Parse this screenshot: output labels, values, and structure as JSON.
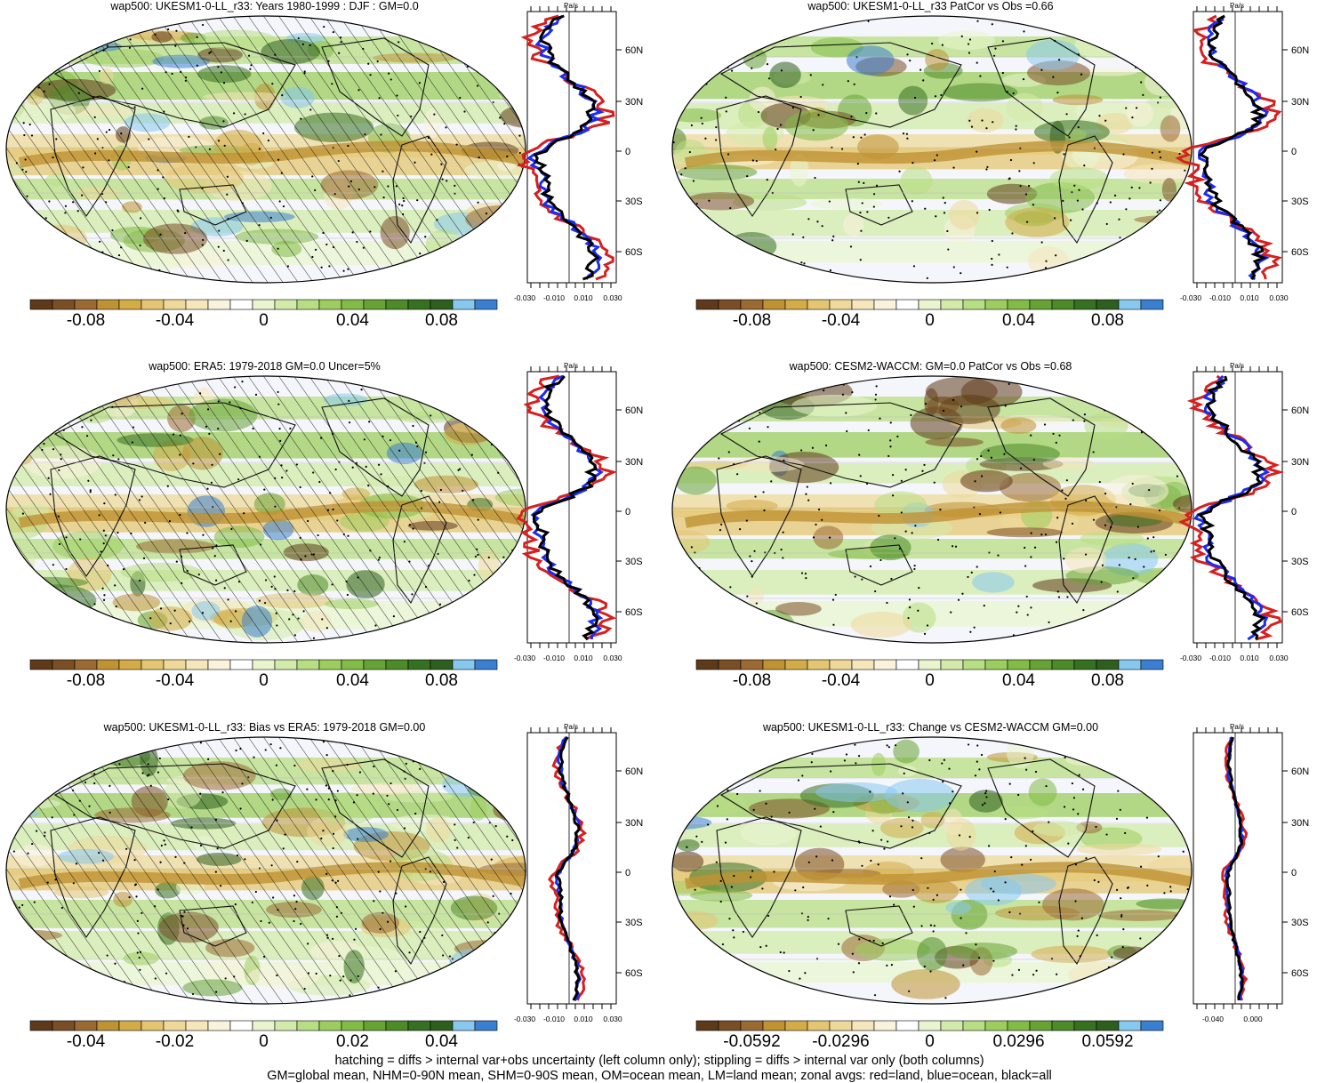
{
  "colors": {
    "scale": [
      "#5e3a1a",
      "#7b4f26",
      "#9b6a33",
      "#bf9233",
      "#d4ac47",
      "#e4c572",
      "#efd99a",
      "#f5e6bc",
      "#f9f2dc",
      "#ffffff",
      "#eaf5d0",
      "#d3ebaa",
      "#b8de83",
      "#9ccd5f",
      "#82bb46",
      "#66a334",
      "#4d8a28",
      "#367021",
      "#2f5f1f",
      "#86c8ee",
      "#3a7fd0"
    ],
    "land_line": "#d62020",
    "ocean_line": "#1a2cf0",
    "all_line": "#000000"
  },
  "panels": [
    {
      "title": "wap500: UKESM1-0-LL_r33: Years 1980-1999 : DJF : GM=0.0",
      "cb_labels": [
        "-0.08",
        "-0.04",
        "0",
        "0.04",
        "0.08"
      ],
      "unit": "Pa/s",
      "profile_ticks": [
        "-0.030",
        "-0.010",
        "0.010",
        "0.030"
      ],
      "hatch": true
    },
    {
      "title": "wap500: UKESM1-0-LL_r33 PatCor vs Obs =0.66",
      "cb_labels": [
        "-0.08",
        "-0.04",
        "0",
        "0.04",
        "0.08"
      ],
      "unit": "Pa/s",
      "profile_ticks": [
        "-0.030",
        "-0.010",
        "0.010",
        "0.030"
      ],
      "hatch": false
    },
    {
      "title": "wap500: ERA5: 1979-2018 GM=0.0 Uncer=5%",
      "cb_labels": [
        "-0.08",
        "-0.04",
        "0",
        "0.04",
        "0.08"
      ],
      "unit": "Pa/s",
      "profile_ticks": [
        "-0.030",
        "-0.010",
        "0.010",
        "0.030"
      ],
      "hatch": true
    },
    {
      "title": "wap500: CESM2-WACCM: GM=0.0 PatCor vs Obs =0.68",
      "cb_labels": [
        "-0.08",
        "-0.04",
        "0",
        "0.04",
        "0.08"
      ],
      "unit": "Pa/s",
      "profile_ticks": [
        "-0.030",
        "-0.010",
        "0.010",
        "0.030"
      ],
      "hatch": false
    },
    {
      "title": "wap500: UKESM1-0-LL_r33: Bias vs ERA5: 1979-2018 GM=0.00",
      "cb_labels": [
        "-0.04",
        "-0.02",
        "0",
        "0.02",
        "0.04"
      ],
      "unit": "Pa/s",
      "profile_ticks": [
        "-0.030",
        "-0.010",
        "0.010",
        "0.030"
      ],
      "hatch": true
    },
    {
      "title": "wap500: UKESM1-0-LL_r33: Change vs CESM2-WACCM GM=0.00",
      "cb_labels": [
        "-0.0592",
        "-0.0296",
        "0",
        "0.0296",
        "0.0592"
      ],
      "unit": "Pa/s",
      "profile_ticks": [
        "-0.040",
        "0.000"
      ],
      "hatch": false
    }
  ],
  "lat_labels": [
    "60N",
    "30N",
    "0",
    "30S",
    "60S"
  ],
  "footer": {
    "line1": "hatching = diffs > internal var+obs uncertainty (left column only); stippling = diffs > internal var only (both columns)",
    "line2": "GM=global mean, NHM=0-90N mean, SHM=0-90S mean, OM=ocean mean, LM=land mean; zonal avgs: red=land, blue=ocean, black=all"
  }
}
